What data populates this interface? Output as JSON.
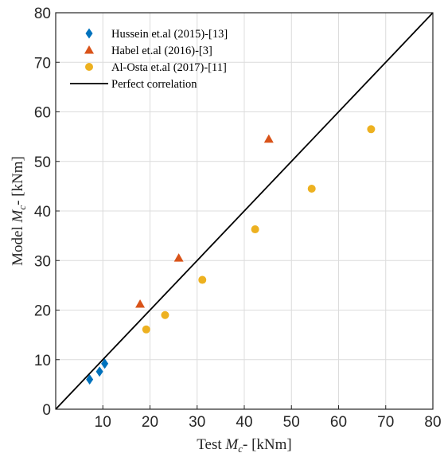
{
  "chart_data": {
    "type": "scatter",
    "xlabel_prefix": "Test ",
    "xlabel_math_base": "M",
    "xlabel_math_sub": "c",
    "xlabel_suffix": "- [kNm]",
    "ylabel_prefix": "Model ",
    "ylabel_math_base": "M",
    "ylabel_math_sub": "c",
    "ylabel_suffix": "- [kNm]",
    "xlim": [
      0,
      80
    ],
    "ylim": [
      0,
      80
    ],
    "xticks": [
      10,
      20,
      30,
      40,
      50,
      60,
      70,
      80
    ],
    "yticks": [
      0,
      10,
      20,
      30,
      40,
      50,
      60,
      70,
      80
    ],
    "grid": true,
    "legend_position": "top-left",
    "series": [
      {
        "name": "Hussein et.al (2015)-[13]",
        "marker": "diamond",
        "color": "#0072bd",
        "points": [
          [
            7.2,
            6.0
          ],
          [
            9.3,
            7.6
          ],
          [
            10.4,
            9.2
          ]
        ]
      },
      {
        "name": "Habel et.al (2016)-[3]",
        "marker": "triangle",
        "color": "#d95319",
        "points": [
          [
            17.9,
            21.2
          ],
          [
            26.1,
            30.5
          ],
          [
            45.2,
            54.5
          ]
        ]
      },
      {
        "name": "Al-Osta et.al (2017)-[11]",
        "marker": "circle",
        "color": "#edb120",
        "points": [
          [
            19.2,
            16.1
          ],
          [
            23.2,
            19.0
          ],
          [
            31.1,
            26.1
          ],
          [
            42.3,
            36.3
          ],
          [
            54.3,
            44.5
          ],
          [
            66.9,
            56.5
          ]
        ]
      }
    ],
    "reference_line": {
      "name": "Perfect correlation",
      "color": "#000000",
      "points": [
        [
          0,
          0
        ],
        [
          80,
          80
        ]
      ]
    }
  }
}
